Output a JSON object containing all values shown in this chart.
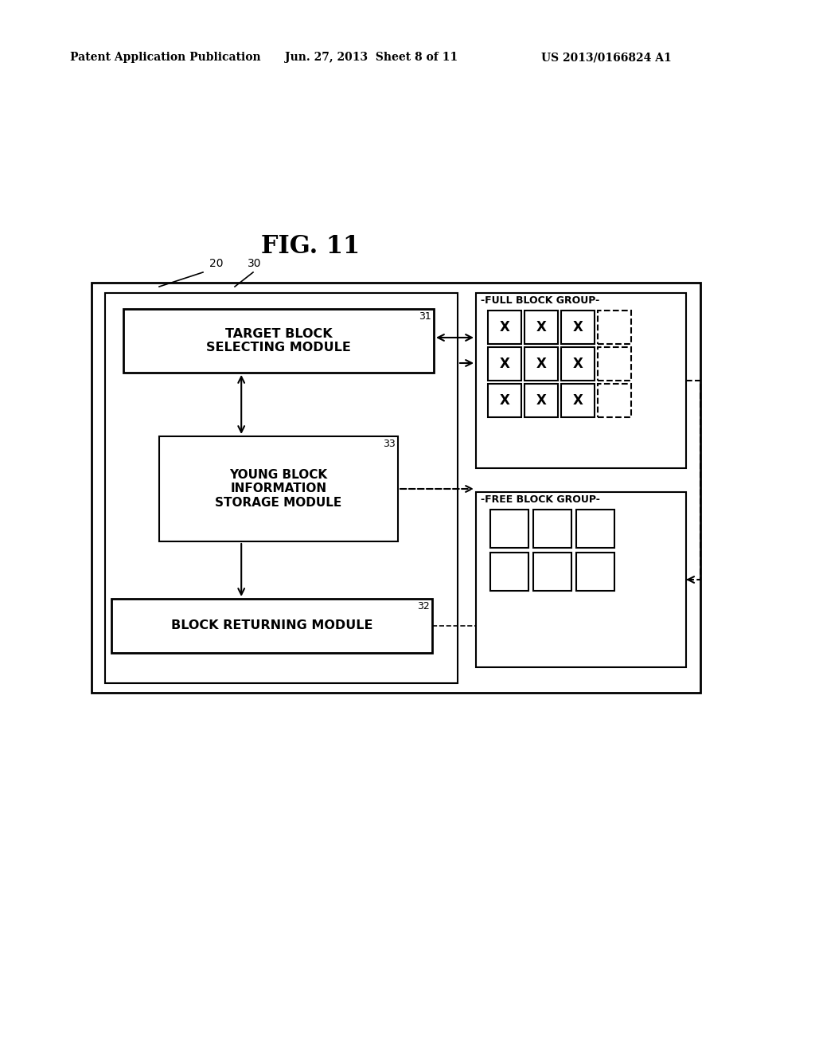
{
  "title": "FIG. 11",
  "header_left": "Patent Application Publication",
  "header_center": "Jun. 27, 2013  Sheet 8 of 11",
  "header_right": "US 2013/0166824 A1",
  "bg_color": "#ffffff",
  "label_20": "20",
  "label_30": "30",
  "label_31": "31",
  "label_32": "32",
  "label_33": "33",
  "box_target_block": "TARGET BLOCK\nSELECTING MODULE",
  "box_young_block": "YOUNG BLOCK\nINFORMATION\nSTORAGE MODULE",
  "box_block_returning": "BLOCK RETURNING MODULE",
  "label_full_block_group": "FULL BLOCK GROUP",
  "label_free_block_group": "FREE BLOCK GROUP"
}
